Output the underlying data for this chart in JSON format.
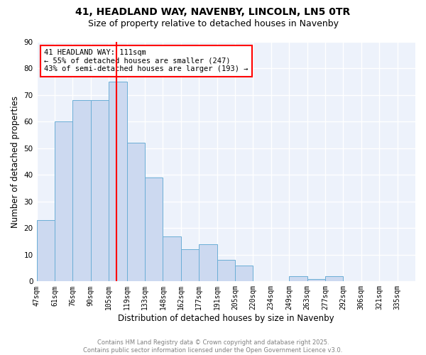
{
  "title1": "41, HEADLAND WAY, NAVENBY, LINCOLN, LN5 0TR",
  "title2": "Size of property relative to detached houses in Navenby",
  "xlabel": "Distribution of detached houses by size in Navenby",
  "ylabel": "Number of detached properties",
  "bin_labels": [
    "47sqm",
    "61sqm",
    "76sqm",
    "90sqm",
    "105sqm",
    "119sqm",
    "133sqm",
    "148sqm",
    "162sqm",
    "177sqm",
    "191sqm",
    "205sqm",
    "220sqm",
    "234sqm",
    "249sqm",
    "263sqm",
    "277sqm",
    "292sqm",
    "306sqm",
    "321sqm",
    "335sqm"
  ],
  "values": [
    23,
    60,
    68,
    68,
    75,
    52,
    39,
    17,
    12,
    14,
    8,
    6,
    0,
    0,
    2,
    1,
    2,
    0,
    0,
    0,
    0
  ],
  "bar_facecolor": "#ccd9f0",
  "bar_edgecolor": "#6baed6",
  "vline_bin_index": 4.78,
  "vline_color": "red",
  "annotation_text": "41 HEADLAND WAY: 111sqm\n← 55% of detached houses are smaller (247)\n43% of semi-detached houses are larger (193) →",
  "annotation_box_color": "red",
  "annotation_fontsize": 7.5,
  "ylim": [
    0,
    90
  ],
  "yticks": [
    0,
    10,
    20,
    30,
    40,
    50,
    60,
    70,
    80,
    90
  ],
  "background_color": "#edf2fb",
  "grid_color": "white",
  "footer_text": "Contains HM Land Registry data © Crown copyright and database right 2025.\nContains public sector information licensed under the Open Government Licence v3.0.",
  "title_fontsize": 10,
  "subtitle_fontsize": 9,
  "axis_label_fontsize": 8.5,
  "tick_fontsize": 7
}
